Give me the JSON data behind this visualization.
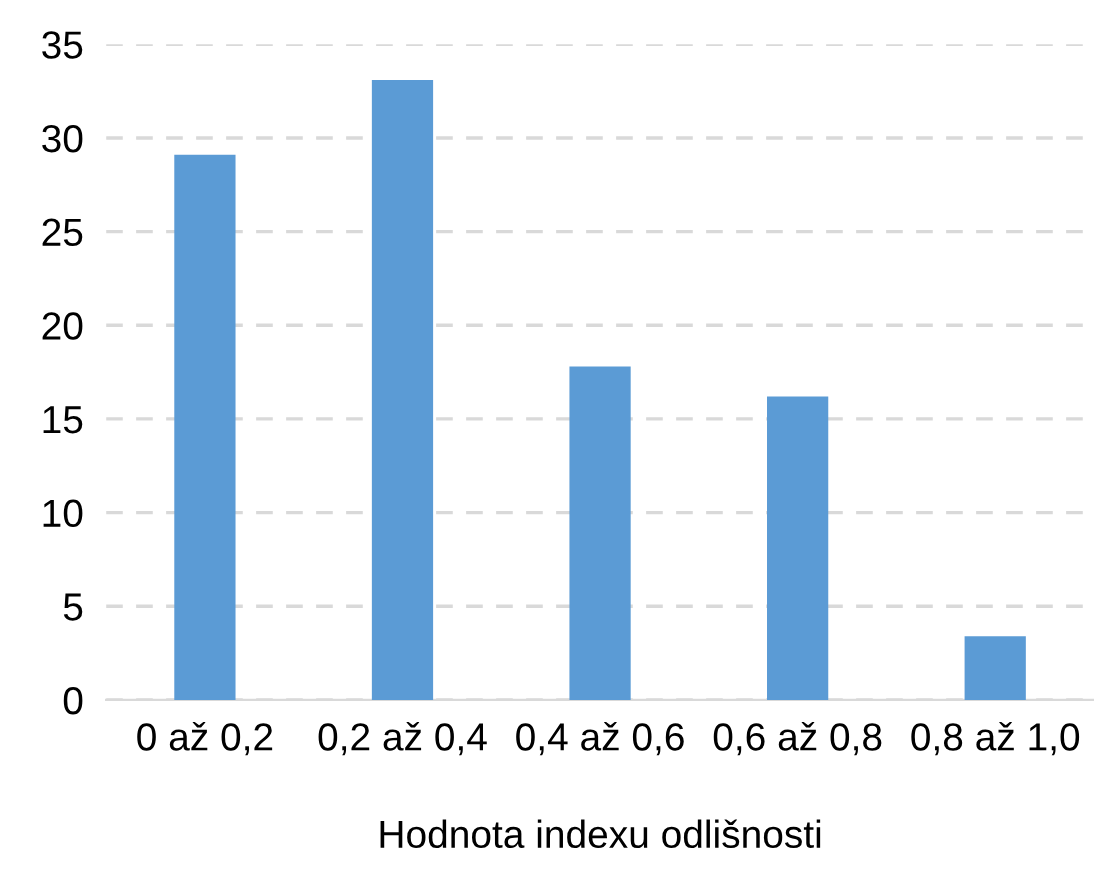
{
  "chart_data": {
    "type": "bar",
    "xlabel": "Hodnota indexu odlišnosti",
    "categories": [
      "0 až 0,2",
      "0,2 až 0,4",
      "0,4 až 0,6",
      "0,6 až 0,8",
      "0,8 až 1,0"
    ],
    "values": [
      29.1,
      33.1,
      17.8,
      16.2,
      3.4
    ],
    "color": "#5b9bd5",
    "ylim": [
      0,
      35
    ],
    "yticks": [
      0,
      5,
      10,
      15,
      20,
      25,
      30,
      35
    ],
    "grid": "y"
  }
}
